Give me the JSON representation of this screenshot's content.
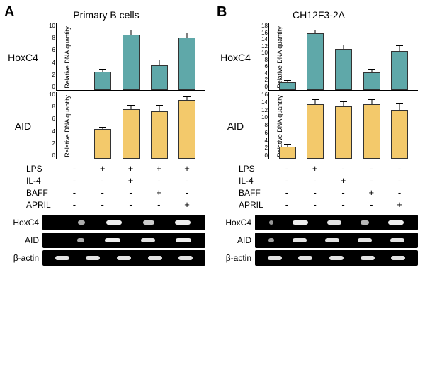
{
  "panel_a": {
    "label": "A",
    "title": "Primary B cells",
    "hoxc4_chart": {
      "type": "bar",
      "side_label": "HoxC4",
      "y_label": "Relative DNA quantity",
      "ylim": [
        0,
        10
      ],
      "ytick_step": 2,
      "bar_color": "#5fa8a9",
      "values": [
        null,
        2.7,
        8.2,
        3.7,
        7.8
      ],
      "errors": [
        null,
        0.3,
        0.6,
        0.7,
        0.6
      ]
    },
    "aid_chart": {
      "type": "bar",
      "side_label": "AID",
      "y_label": "Relative DNA quantity",
      "ylim": [
        0,
        10
      ],
      "ytick_step": 2,
      "bar_color": "#f3c96b",
      "values": [
        null,
        4.4,
        7.4,
        7.1,
        8.7
      ],
      "errors": [
        null,
        0.2,
        0.5,
        0.8,
        0.5
      ]
    },
    "treatments": {
      "labels": [
        "LPS",
        "IL-4",
        "BAFF",
        "APRIL"
      ],
      "matrix": [
        [
          "-",
          "+",
          "+",
          "+",
          "+"
        ],
        [
          "-",
          "-",
          "+",
          "-",
          "-"
        ],
        [
          "-",
          "-",
          "-",
          "+",
          "-"
        ],
        [
          "-",
          "-",
          "-",
          "-",
          "+"
        ]
      ]
    },
    "gels": {
      "labels": [
        "HoxC4",
        "AID",
        "β-actin"
      ],
      "band_widths": [
        [
          0,
          10,
          22,
          16,
          22
        ],
        [
          0,
          10,
          22,
          20,
          22
        ],
        [
          20,
          20,
          20,
          20,
          20
        ]
      ]
    }
  },
  "panel_b": {
    "label": "B",
    "title": "CH12F3-2A",
    "hoxc4_chart": {
      "type": "bar",
      "side_label": "HoxC4",
      "y_label": "Relative DNA quantity",
      "ylim": [
        0,
        18
      ],
      "ytick_step": 2,
      "bar_color": "#5fa8a9",
      "values": [
        2.1,
        15.2,
        11.0,
        4.8,
        10.5
      ],
      "errors": [
        0.3,
        0.7,
        0.9,
        0.5,
        1.2
      ]
    },
    "aid_chart": {
      "type": "bar",
      "side_label": "AID",
      "y_label": "Relative DNA quantity",
      "ylim": [
        0,
        16
      ],
      "ytick_step": 2,
      "bar_color": "#f3c96b",
      "values": [
        2.9,
        13.0,
        12.4,
        13.0,
        11.6
      ],
      "errors": [
        0.4,
        0.9,
        1.1,
        0.9,
        1.4
      ]
    },
    "treatments": {
      "labels": [
        "LPS",
        "IL-4",
        "BAFF",
        "APRIL"
      ],
      "matrix": [
        [
          "-",
          "+",
          "-",
          "-",
          "-"
        ],
        [
          "-",
          "-",
          "+",
          "-",
          "-"
        ],
        [
          "-",
          "-",
          "-",
          "+",
          "-"
        ],
        [
          "-",
          "-",
          "-",
          "-",
          "+"
        ]
      ]
    },
    "gels": {
      "labels": [
        "HoxC4",
        "AID",
        "β-actin"
      ],
      "band_widths": [
        [
          6,
          22,
          20,
          12,
          22
        ],
        [
          8,
          20,
          20,
          20,
          20
        ],
        [
          20,
          20,
          20,
          20,
          20
        ]
      ]
    }
  }
}
